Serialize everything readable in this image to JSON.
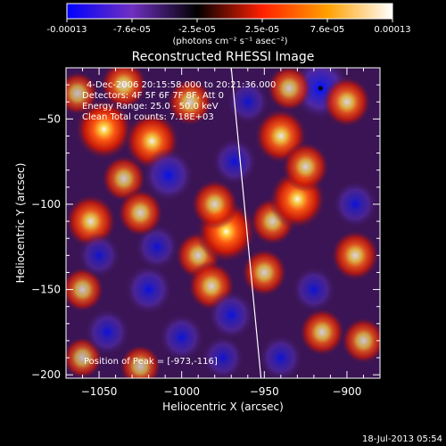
{
  "colorbar": {
    "tick_labels": [
      "-0.00013",
      "-7.6e-05",
      "-2.5e-05",
      "2.5e-05",
      "7.6e-05",
      "0.00013"
    ],
    "unit_label": "(photons cm⁻² s⁻¹ asec⁻²)",
    "colors": [
      "#0000ff",
      "#7030c0",
      "#000000",
      "#ff2000",
      "#ffa000",
      "#ffffff"
    ]
  },
  "chart_data": {
    "type": "heatmap",
    "title": "Reconstructed RHESSI Image",
    "xlabel": "Heliocentric X (arcsec)",
    "ylabel": "Heliocentric Y (arcsec)",
    "xlim": [
      -1070,
      -880
    ],
    "ylim": [
      -202,
      -20
    ],
    "x_ticks": [
      -1050,
      -1000,
      -950,
      -900
    ],
    "y_ticks": [
      -50,
      -100,
      -150,
      -200
    ],
    "annotations": [
      "4-Dec-2006 20:15:58.000  to 20:21:36.000",
      "Detectors: 4F 5F 6F 7F 8F, Att 0",
      "Energy Range: 25.0 - 50.0 keV",
      "Clean     Total counts: 7.18E+03"
    ],
    "peak_label": "Position of Peak = [-973,-116]",
    "peak_position": [
      -973,
      -116
    ],
    "min_marker_position": [
      -916,
      -32
    ],
    "limb_line": [
      [
        -970,
        -20
      ],
      [
        -952,
        -202
      ]
    ],
    "blobs": [
      {
        "x": -1047,
        "y": -56,
        "v": 0.95
      },
      {
        "x": -1035,
        "y": -30,
        "v": 0.55
      },
      {
        "x": -1063,
        "y": -35,
        "v": 0.35
      },
      {
        "x": -1055,
        "y": -110,
        "v": 0.7
      },
      {
        "x": -1035,
        "y": -85,
        "v": 0.45
      },
      {
        "x": -1060,
        "y": -150,
        "v": 0.4
      },
      {
        "x": -1060,
        "y": -190,
        "v": 0.3
      },
      {
        "x": -1045,
        "y": -175,
        "v": -0.5
      },
      {
        "x": -1020,
        "y": -150,
        "v": -0.6
      },
      {
        "x": -1000,
        "y": -178,
        "v": -0.5
      },
      {
        "x": -1015,
        "y": -125,
        "v": -0.45
      },
      {
        "x": -1025,
        "y": -105,
        "v": 0.5
      },
      {
        "x": -1018,
        "y": -63,
        "v": 0.85
      },
      {
        "x": -1008,
        "y": -83,
        "v": -0.7
      },
      {
        "x": -995,
        "y": -40,
        "v": 0.5
      },
      {
        "x": -990,
        "y": -130,
        "v": 0.5
      },
      {
        "x": -973,
        "y": -116,
        "v": 1.0
      },
      {
        "x": -980,
        "y": -100,
        "v": 0.55
      },
      {
        "x": -968,
        "y": -75,
        "v": -0.5
      },
      {
        "x": -982,
        "y": -148,
        "v": 0.55
      },
      {
        "x": -970,
        "y": -165,
        "v": -0.55
      },
      {
        "x": -975,
        "y": -190,
        "v": -0.4
      },
      {
        "x": -950,
        "y": -140,
        "v": 0.5
      },
      {
        "x": -945,
        "y": -110,
        "v": 0.5
      },
      {
        "x": -930,
        "y": -97,
        "v": 0.9
      },
      {
        "x": -940,
        "y": -60,
        "v": 0.75
      },
      {
        "x": -925,
        "y": -78,
        "v": 0.55
      },
      {
        "x": -916,
        "y": -32,
        "v": -1.0
      },
      {
        "x": -935,
        "y": -32,
        "v": 0.45
      },
      {
        "x": -900,
        "y": -40,
        "v": 0.6
      },
      {
        "x": -895,
        "y": -100,
        "v": -0.5
      },
      {
        "x": -895,
        "y": -130,
        "v": 0.6
      },
      {
        "x": -920,
        "y": -150,
        "v": -0.45
      },
      {
        "x": -915,
        "y": -175,
        "v": 0.5
      },
      {
        "x": -890,
        "y": -180,
        "v": 0.45
      },
      {
        "x": -940,
        "y": -190,
        "v": -0.45
      },
      {
        "x": -1025,
        "y": -195,
        "v": 0.35
      },
      {
        "x": -1050,
        "y": -130,
        "v": -0.4
      },
      {
        "x": -960,
        "y": -40,
        "v": -0.4
      }
    ]
  },
  "footer": {
    "timestamp": "18-Jul-2013 05:54"
  }
}
